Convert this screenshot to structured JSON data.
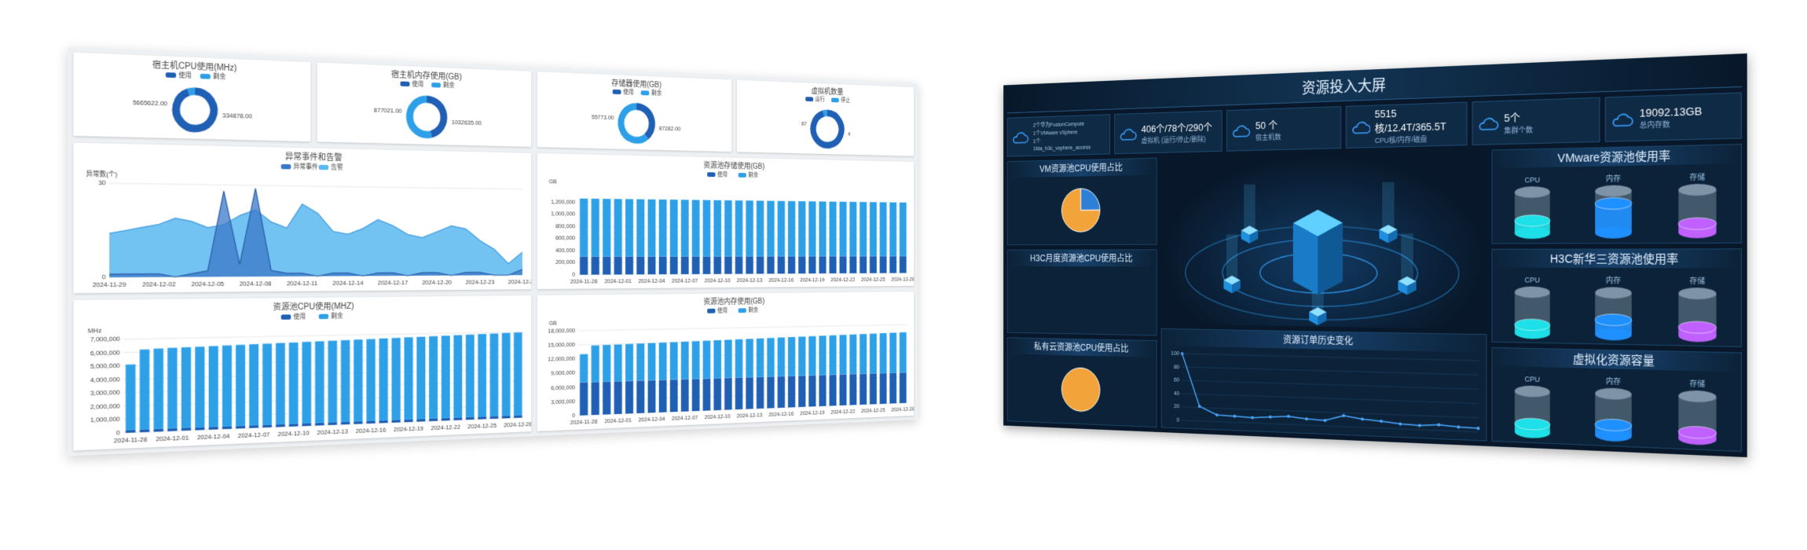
{
  "left_dashboard": {
    "donuts": [
      {
        "type": "donut",
        "title": "宿主机CPU使用(MHz)",
        "names": [
          "使用",
          "剩余"
        ],
        "colors": [
          "#1f5fb4",
          "#2ea0e8"
        ],
        "values": [
          5665622,
          334878
        ],
        "value_labels": [
          "5665622.00",
          "334878.00"
        ]
      },
      {
        "type": "donut",
        "title": "宿主机内存使用(GB)",
        "names": [
          "使用",
          "剩余"
        ],
        "colors": [
          "#1f5fb4",
          "#2ea0e8"
        ],
        "values": [
          877021,
          1032635
        ],
        "value_labels": [
          "877021.00",
          "1032635.00"
        ]
      },
      {
        "type": "donut",
        "title": "存储器使用(GB)",
        "names": [
          "使用",
          "剩余"
        ],
        "colors": [
          "#1f5fb4",
          "#2ea0e8"
        ],
        "values": [
          55773,
          87282
        ],
        "value_labels": [
          "55773.00",
          "87282.00"
        ]
      },
      {
        "type": "donut",
        "title": "虚拟机数量",
        "names": [
          "运行",
          "停止"
        ],
        "colors": [
          "#1f5fb4",
          "#2ea0e8"
        ],
        "values": [
          87,
          4
        ]
      }
    ],
    "area_chart": {
      "type": "area",
      "title": "异常事件和告警",
      "y_label": "异常数(个)",
      "ylim": [
        0,
        30
      ],
      "yticks": [
        0,
        30
      ],
      "categories": [
        "2024-11-29",
        null,
        null,
        "2024-12-02",
        null,
        null,
        "2024-12-05",
        null,
        null,
        "2024-12-08",
        null,
        null,
        "2024-12-11",
        null,
        null,
        "2024-12-14",
        null,
        null,
        "2024-12-17",
        null,
        null,
        "2024-12-20",
        null,
        null,
        "2024-12-23",
        null,
        null,
        "2024-12-26"
      ],
      "series": [
        {
          "name": "异常事件",
          "color": "#3a78c8",
          "values": [
            1,
            1,
            1,
            1,
            0,
            1,
            2,
            28,
            4,
            29,
            2,
            1,
            1,
            0,
            1,
            1,
            0,
            1,
            1,
            0,
            1,
            1,
            0,
            1,
            1,
            0,
            0,
            2
          ]
        },
        {
          "name": "告警",
          "color": "#5bb8f0",
          "values": [
            14,
            15,
            16,
            17,
            19,
            18,
            16,
            17,
            20,
            22,
            18,
            16,
            24,
            21,
            15,
            14,
            16,
            19,
            17,
            14,
            13,
            15,
            17,
            16,
            12,
            9,
            4,
            8
          ]
        }
      ]
    },
    "storage_chart": {
      "type": "bar",
      "title": "资源池存储使用(GB)",
      "y_label": "GB",
      "ylim": [
        0,
        1400000
      ],
      "yticks": [
        0,
        {
          "value": 200000,
          "label": "200,000"
        },
        {
          "value": 400000,
          "label": "400,000"
        },
        {
          "value": 600000,
          "label": "600,000"
        },
        {
          "value": 800000,
          "label": "800,000"
        },
        {
          "value": 1000000,
          "label": "1,000,000"
        },
        {
          "value": 1200000,
          "label": "1,200,000"
        }
      ],
      "categories": [
        "2024-11-28",
        null,
        null,
        "2024-12-01",
        null,
        null,
        "2024-12-04",
        null,
        null,
        "2024-12-07",
        null,
        null,
        "2024-12-10",
        null,
        null,
        "2024-12-13",
        null,
        null,
        "2024-12-16",
        null,
        null,
        "2024-12-19",
        null,
        null,
        "2024-12-22",
        null,
        null,
        "2024-12-25",
        null,
        null,
        "2024-12-28"
      ],
      "series": [
        {
          "name": "使用",
          "color": "#1f5fb4",
          "values": [
            300000,
            300000,
            300000,
            300000,
            300000,
            300000,
            300000,
            300000,
            300000,
            300000,
            300000,
            300000,
            300000,
            300000,
            300000,
            300000,
            300000,
            300000,
            300000,
            300000,
            300000,
            300000,
            300000,
            300000,
            300000,
            300000,
            300000,
            300000,
            300000,
            300000,
            300000
          ]
        },
        {
          "name": "剩余",
          "color": "#2ea0e8",
          "values": [
            960000,
            960000,
            960000,
            960000,
            960000,
            960000,
            960000,
            960000,
            960000,
            960000,
            960000,
            960000,
            960000,
            960000,
            960000,
            960000,
            960000,
            960000,
            960000,
            960000,
            960000,
            960000,
            960000,
            960000,
            960000,
            960000,
            960000,
            960000,
            960000,
            960000,
            960000
          ]
        }
      ]
    },
    "cpu_chart": {
      "type": "bar",
      "title": "资源池CPU使用(MHZ)",
      "y_label": "MHz",
      "ylim": [
        0,
        7000000
      ],
      "yticks": [
        0,
        {
          "value": 1000000,
          "label": "1,000,000"
        },
        {
          "value": 2000000,
          "label": "2,000,000"
        },
        {
          "value": 3000000,
          "label": "3,000,000"
        },
        {
          "value": 4000000,
          "label": "4,000,000"
        },
        {
          "value": 5000000,
          "label": "5,000,000"
        },
        {
          "value": 6000000,
          "label": "6,000,000"
        },
        {
          "value": 7000000,
          "label": "7,000,000"
        }
      ],
      "categories": [
        "2024-11-28",
        null,
        null,
        "2024-12-01",
        null,
        null,
        "2024-12-04",
        null,
        null,
        "2024-12-07",
        null,
        null,
        "2024-12-10",
        null,
        null,
        "2024-12-13",
        null,
        null,
        "2024-12-16",
        null,
        null,
        "2024-12-19",
        null,
        null,
        "2024-12-22",
        null,
        null,
        "2024-12-25",
        null,
        null,
        "2024-12-28"
      ],
      "series": [
        {
          "name": "使用",
          "color": "#1f5fb4",
          "values": [
            200000,
            200000,
            200000,
            200000,
            200000,
            200000,
            200000,
            200000,
            200000,
            200000,
            200000,
            200000,
            200000,
            200000,
            200000,
            200000,
            200000,
            200000,
            200000,
            200000,
            200000,
            200000,
            200000,
            200000,
            200000,
            200000,
            200000,
            200000,
            200000,
            200000,
            200000
          ]
        },
        {
          "name": "剩余",
          "color": "#2ea0e8",
          "values": [
            4900000,
            6000000,
            6050000,
            6080000,
            6100000,
            6120000,
            6150000,
            6180000,
            6200000,
            6230000,
            6250000,
            6280000,
            6300000,
            6330000,
            6350000,
            6380000,
            6400000,
            6430000,
            6450000,
            6480000,
            6500000,
            6530000,
            6550000,
            6580000,
            6600000,
            6630000,
            6650000,
            6680000,
            6700000,
            6730000,
            6750000
          ]
        }
      ]
    },
    "memory_chart": {
      "type": "bar",
      "title": "资源池内存使用(GB)",
      "y_label": "GB",
      "ylim": [
        0,
        18000000
      ],
      "yticks": [
        0,
        {
          "value": 3000000,
          "label": "3,000,000"
        },
        {
          "value": 6000000,
          "label": "6,000,000"
        },
        {
          "value": 9000000,
          "label": "9,000,000"
        },
        {
          "value": 12000000,
          "label": "12,000,000"
        },
        {
          "value": 15000000,
          "label": "15,000,000"
        },
        {
          "value": 18000000,
          "label": "18,000,000"
        }
      ],
      "categories": [
        "2024-11-28",
        null,
        null,
        "2024-12-01",
        null,
        null,
        "2024-12-04",
        null,
        null,
        "2024-12-07",
        null,
        null,
        "2024-12-10",
        null,
        null,
        "2024-12-13",
        null,
        null,
        "2024-12-16",
        null,
        null,
        "2024-12-19",
        null,
        null,
        "2024-12-22",
        null,
        null,
        "2024-12-25",
        null,
        null,
        "2024-12-28"
      ],
      "series": [
        {
          "name": "使用",
          "color": "#1f5fb4",
          "values": [
            7000000,
            7000000,
            7000000,
            7000000,
            7000000,
            7000000,
            7000000,
            7000000,
            7000000,
            7000000,
            7000000,
            7000000,
            7000000,
            7000000,
            7000000,
            7000000,
            7000000,
            7000000,
            7000000,
            7000000,
            7000000,
            7000000,
            7000000,
            7000000,
            7000000,
            7000000,
            7000000,
            7000000,
            7000000,
            7000000,
            7000000
          ]
        },
        {
          "name": "剩余",
          "color": "#2ea0e8",
          "values": [
            6000000,
            7800000,
            7850000,
            7900000,
            7950000,
            8000000,
            8050000,
            8100000,
            8150000,
            8200000,
            8250000,
            8300000,
            8350000,
            8400000,
            8450000,
            8500000,
            8550000,
            8600000,
            8650000,
            8700000,
            8750000,
            8800000,
            8850000,
            8900000,
            8950000,
            9000000,
            9050000,
            9100000,
            9150000,
            9200000,
            9250000
          ]
        }
      ]
    }
  },
  "right_dashboard": {
    "title": "资源投入大屏",
    "stats": [
      {
        "lines": [
          "2个华为FusionCompute",
          "1个VMware vSphere",
          "1个",
          "1fda_h3c_vsphere_access"
        ]
      },
      {
        "value": "406个/78个/290个",
        "label": "虚拟机 (运行/停止/删除)"
      },
      {
        "value": "50 个",
        "label": "宿主机数"
      },
      {
        "value": "5515核/12.4T/365.5T",
        "label": "CPU核/内存/磁盘"
      },
      {
        "value": "5个",
        "label": "集群个数"
      },
      {
        "value": "19092.13GB",
        "label": "总内存数"
      }
    ],
    "pies": [
      {
        "type": "pie",
        "title": "VM资源池CPU使用占比",
        "colors": [
          "#2e7fd6",
          "#f2a33a"
        ],
        "values": [
          25,
          75
        ]
      },
      {
        "type": "pie",
        "title": "H3C月度资源池CPU使用占比"
      },
      {
        "type": "pie",
        "title": "私有云资源池CPU使用占比",
        "colors": [
          "#f2a33a"
        ],
        "values": [
          100
        ]
      }
    ],
    "order_chart": {
      "type": "line",
      "title": "资源订单历史变化",
      "color": "#4aa8ff",
      "ylim": [
        0,
        100
      ],
      "yticks": [
        0,
        20,
        40,
        60,
        80,
        100
      ],
      "values": [
        100,
        22,
        10,
        9,
        8,
        10,
        12,
        9,
        8,
        16,
        12,
        10,
        7,
        6,
        8,
        6,
        5
      ]
    },
    "capacity": [
      {
        "type": "cylinder",
        "title": "VMware资源池使用率",
        "ylim": [
          0,
          100
        ],
        "items": [
          {
            "name": "CPU",
            "value": 30,
            "color": "#1de0e8"
          },
          {
            "name": "内存",
            "value": 70,
            "color": "#1e90ff"
          },
          {
            "name": "存储",
            "value": 20,
            "color": "#c060ff"
          }
        ]
      },
      {
        "type": "cylinder",
        "title": "H3C新华三资源池使用率",
        "ylim": [
          0,
          100
        ],
        "items": [
          {
            "name": "CPU",
            "value": 20,
            "color": "#1de0e8"
          },
          {
            "name": "内存",
            "value": 35,
            "color": "#1e90ff"
          },
          {
            "name": "存储",
            "value": 20,
            "color": "#c060ff"
          }
        ]
      },
      {
        "type": "cylinder",
        "title": "虚拟化资源容量",
        "ylim": [
          0,
          100
        ],
        "items": [
          {
            "name": "CPU",
            "value": 20,
            "color": "#1de0e8"
          },
          {
            "name": "内存",
            "value": 25,
            "color": "#1e90ff"
          },
          {
            "name": "存储",
            "value": 15,
            "color": "#c060ff"
          }
        ]
      }
    ]
  }
}
